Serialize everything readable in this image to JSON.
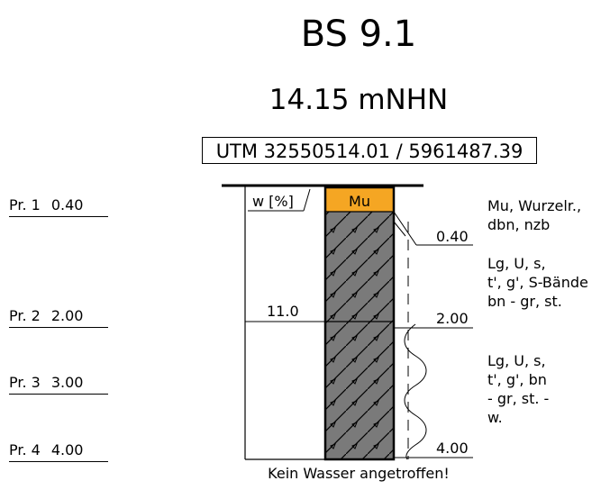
{
  "header": {
    "title": "BS 9.1",
    "elevation": "14.15 mNHN",
    "utm": "UTM 32550514.01 / 5961487.39"
  },
  "samples": [
    {
      "label": "Pr. 1",
      "depth": "0.40"
    },
    {
      "label": "Pr. 2",
      "depth": "2.00"
    },
    {
      "label": "Pr. 3",
      "depth": "3.00"
    },
    {
      "label": "Pr. 4",
      "depth": "4.00"
    }
  ],
  "water_content": {
    "axis_label": "w [%]",
    "value": "11.0",
    "at_depth": 2.0
  },
  "layers": [
    {
      "code": "Mu",
      "top": 0.0,
      "bottom": 0.4,
      "color": "#f5a623",
      "description_lines": [
        "Mu, Wurzelr.,",
        "dbn, nzb"
      ]
    },
    {
      "code": "",
      "top": 0.4,
      "bottom": 2.0,
      "color": "#7a7a7a",
      "description_lines": [
        "Lg, U, s,",
        "t', g', S-Bände",
        "bn - gr, st."
      ]
    },
    {
      "code": "",
      "top": 2.0,
      "bottom": 4.0,
      "color": "#7a7a7a",
      "description_lines": [
        "Lg, U, s,",
        "t', g', bn",
        "- gr, st. -",
        "w."
      ]
    }
  ],
  "boundary_labels": [
    "0.40",
    "2.00",
    "4.00"
  ],
  "footer": "Kein Wasser angetroffen!"
}
